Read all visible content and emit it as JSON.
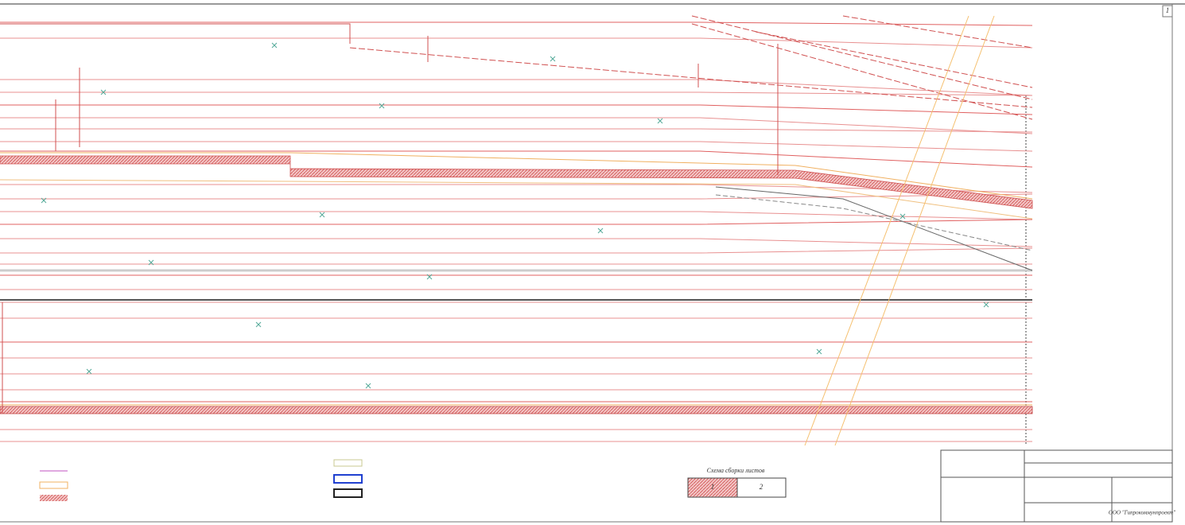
{
  "drawing": {
    "sheet_number": "1",
    "assembly_scheme": {
      "title": "Схема сборки листов",
      "sheets": [
        "1",
        "2"
      ]
    },
    "title_block": {
      "company": "ООО \"Гипрокоммунпроект\""
    }
  }
}
